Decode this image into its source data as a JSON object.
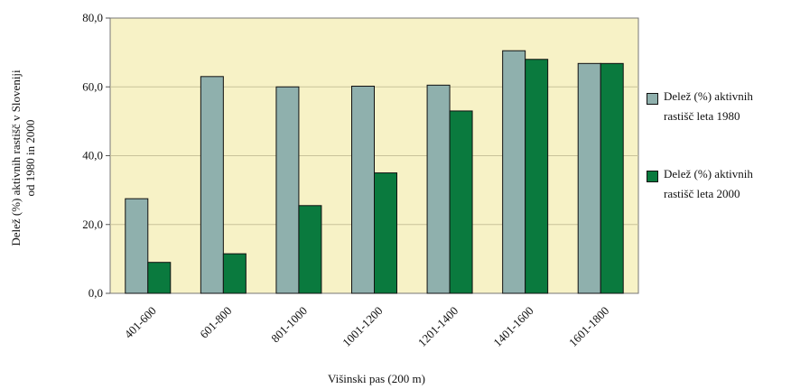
{
  "chart_data": {
    "type": "bar",
    "categories": [
      "401-600",
      "601-800",
      "801-1000",
      "1001-1200",
      "1201-1400",
      "1401-1600",
      "1601-1800"
    ],
    "series": [
      {
        "name": "Delež (%) aktivnih rastišč leta 1980",
        "values": [
          27.5,
          63.0,
          60.0,
          60.2,
          60.5,
          70.5,
          66.8
        ],
        "color": "#8fb0ad"
      },
      {
        "name": "Delež (%) aktivnih rastišč leta 2000",
        "values": [
          9.0,
          11.5,
          25.5,
          35.0,
          53.0,
          68.0,
          66.8
        ],
        "color": "#0a7a3e"
      }
    ],
    "ylim": [
      0,
      80
    ],
    "yticks": [
      "0,0",
      "20,0",
      "40,0",
      "60,0",
      "80,0"
    ],
    "ylabel_lines": [
      "Delež (%) aktivnih rastišč v Sloveniji",
      "od 1980 in 2000"
    ],
    "xlabel": "Višinski pas (200 m)",
    "grid": true,
    "legend_position": "right",
    "plot_background": "#f7f2c6"
  }
}
